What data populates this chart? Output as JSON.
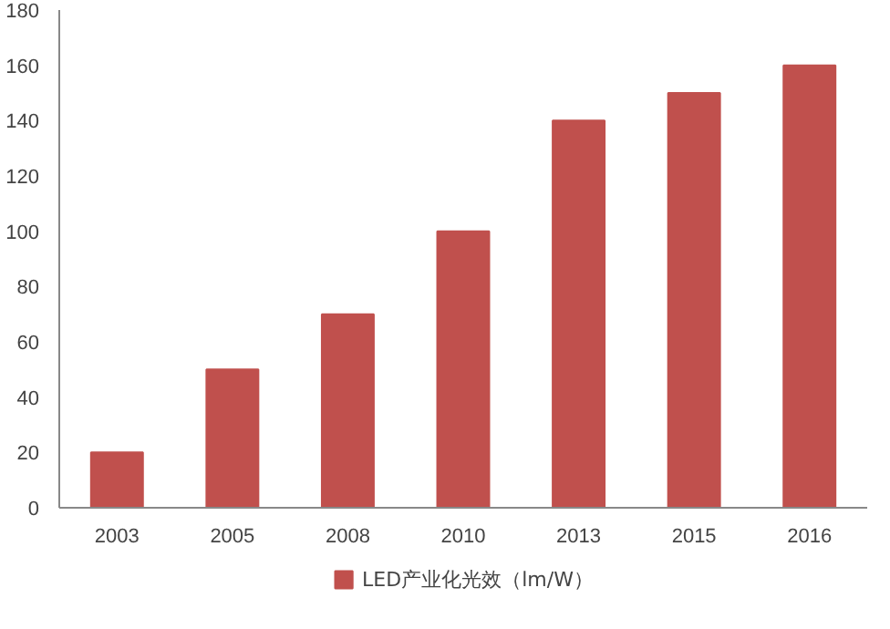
{
  "chart_data": {
    "type": "bar",
    "categories": [
      "2003",
      "2005",
      "2008",
      "2010",
      "2013",
      "2015",
      "2016"
    ],
    "series": [
      {
        "name": "LED产业化光效（lm/W）",
        "color": "#c0504d",
        "values": [
          20,
          50,
          70,
          100,
          140,
          150,
          160
        ]
      }
    ],
    "ylim": [
      0,
      180
    ],
    "yticks": [
      0,
      20,
      40,
      60,
      80,
      100,
      120,
      140,
      160,
      180
    ],
    "grid": false,
    "legend": "bottom"
  }
}
